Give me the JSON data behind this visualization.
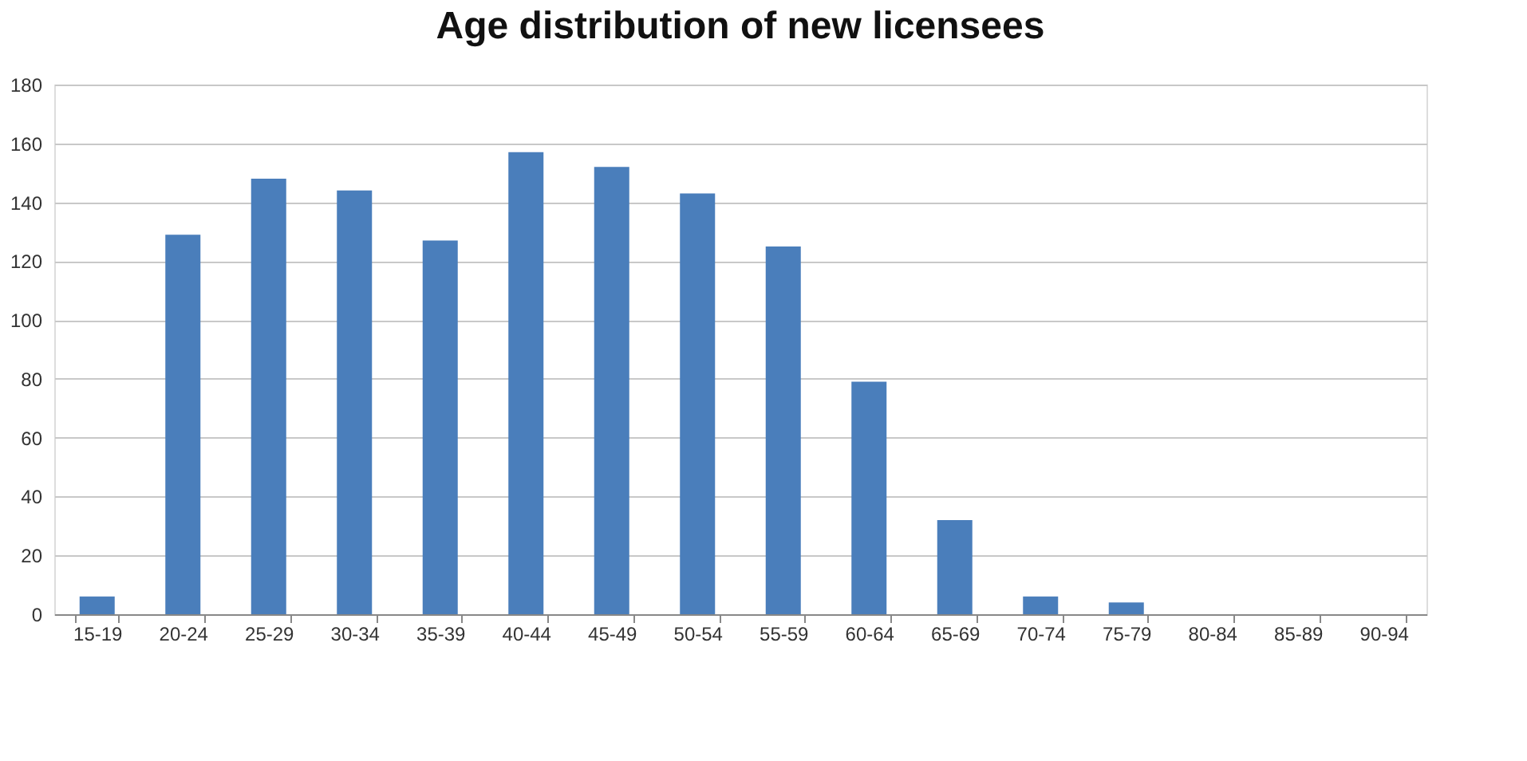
{
  "chart_data": {
    "type": "bar",
    "title": "Age distribution of new licensees",
    "categories": [
      "15-19",
      "20-24",
      "25-29",
      "30-34",
      "35-39",
      "40-44",
      "45-49",
      "50-54",
      "55-59",
      "60-64",
      "65-69",
      "70-74",
      "75-79",
      "80-84",
      "85-89",
      "90-94"
    ],
    "values": [
      6,
      129,
      148,
      144,
      127,
      157,
      152,
      143,
      125,
      79,
      32,
      6,
      4,
      0,
      0,
      0
    ],
    "color": "#4a7ebb",
    "ylim": [
      0,
      180
    ],
    "yticks": [
      0,
      20,
      40,
      60,
      80,
      100,
      120,
      140,
      160,
      180
    ],
    "grid": "y"
  }
}
